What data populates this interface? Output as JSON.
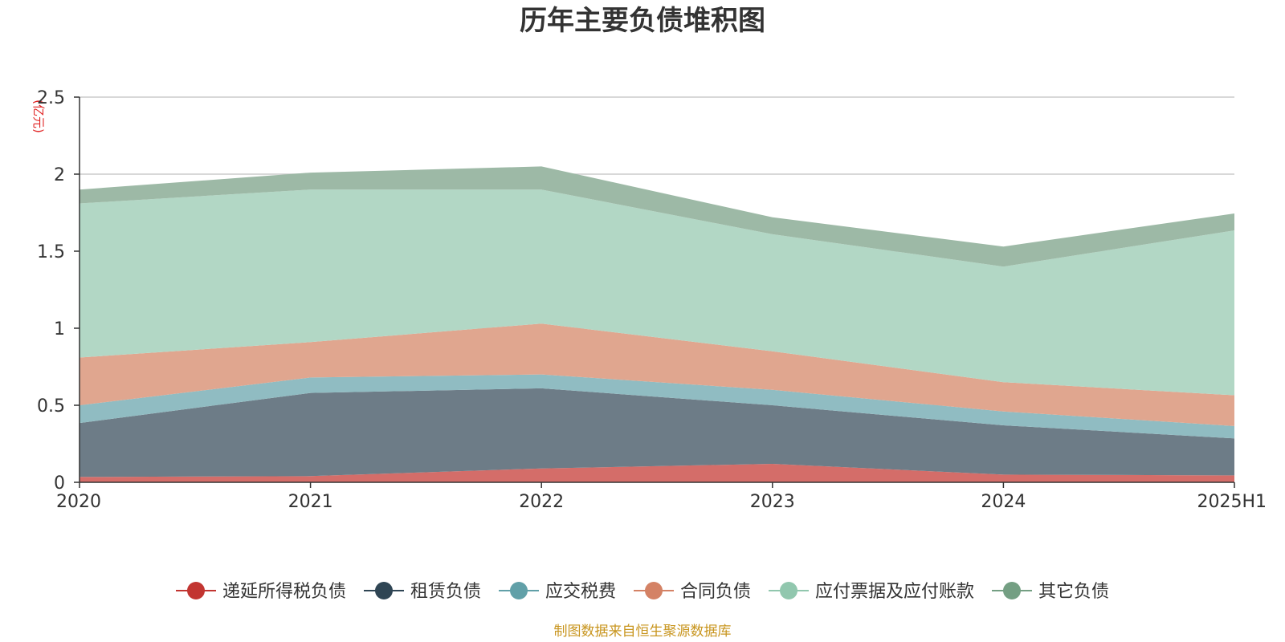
{
  "chart_data": {
    "type": "area",
    "stacked": true,
    "title": "历年主要负债堆积图",
    "unit_label": "(亿元)",
    "categories": [
      "2020",
      "2021",
      "2022",
      "2023",
      "2024",
      "2025H1"
    ],
    "y_ticks": [
      "0",
      "0.5",
      "1",
      "1.5",
      "2",
      "2.5"
    ],
    "ylim": [
      0,
      2.5
    ],
    "grid": true,
    "legend_position": "bottom",
    "source": "制图数据来自恒生聚源数据库",
    "series": [
      {
        "name": "递延所得税负债",
        "color": "#c23531",
        "fill": "#d46d69",
        "values": [
          0.035,
          0.04,
          0.09,
          0.12,
          0.05,
          0.045
        ]
      },
      {
        "name": "租赁负债",
        "color": "#2f4554",
        "fill": "#6d7c87",
        "values": [
          0.35,
          0.54,
          0.52,
          0.38,
          0.32,
          0.24
        ]
      },
      {
        "name": "应交税费",
        "color": "#61a0a8",
        "fill": "#90bcc2",
        "values": [
          0.115,
          0.1,
          0.09,
          0.1,
          0.09,
          0.08
        ]
      },
      {
        "name": "合同负债",
        "color": "#d48265",
        "fill": "#e0a68f",
        "values": [
          0.31,
          0.23,
          0.33,
          0.25,
          0.19,
          0.2
        ]
      },
      {
        "name": "应付票据及应付账款",
        "color": "#91c7ae",
        "fill": "#b2d7c5",
        "values": [
          1.0,
          0.99,
          0.87,
          0.76,
          0.75,
          1.07
        ]
      },
      {
        "name": "其它负债",
        "color": "#749f83",
        "fill": "#9db9a6",
        "values": [
          0.09,
          0.11,
          0.15,
          0.11,
          0.13,
          0.11
        ]
      }
    ]
  }
}
